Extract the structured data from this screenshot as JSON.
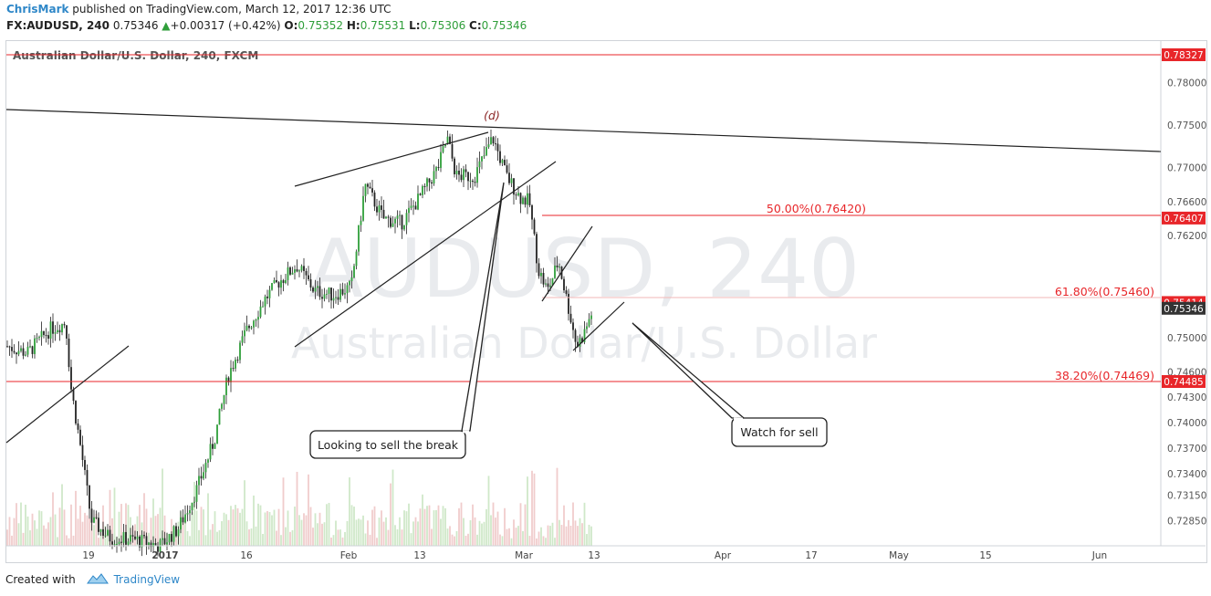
{
  "header": {
    "author": "ChrisMark",
    "published_text": "published on TradingView.com, March 12, 2017 12:36 UTC",
    "symbol": "FX:AUDUSD, 240",
    "last": "0.75346",
    "change": "+0.00317 (+0.42%)",
    "o_label": "O:",
    "o_val": "0.75352",
    "h_label": "H:",
    "h_val": "0.75531",
    "l_label": "L:",
    "l_val": "0.75306",
    "c_label": "C:",
    "c_val": "0.75346"
  },
  "footer": {
    "created_with": "Created with",
    "brand": "TradingView"
  },
  "colors": {
    "bull": "#2f9e3a",
    "bear": "#222222",
    "level": "#e8262a",
    "link": "#2e87c8"
  },
  "chart_data": {
    "type": "candlestick",
    "title": "Australian Dollar/U.S. Dollar, 240, FXCM",
    "watermark_symbol": "AUDUSD, 240",
    "watermark_name": "Australian Dollar/U.S. Dollar",
    "y_ticks": [
      "0.78000",
      "0.77500",
      "0.77000",
      "0.76600",
      "0.76200",
      "0.75000",
      "0.74600",
      "0.74300",
      "0.74000",
      "0.73700",
      "0.73400",
      "0.73150",
      "0.72850"
    ],
    "y_tick_values": [
      0.78,
      0.775,
      0.77,
      0.766,
      0.762,
      0.75,
      0.746,
      0.743,
      0.74,
      0.737,
      0.734,
      0.7315,
      0.7285
    ],
    "x_ticks": [
      "19",
      "2017",
      "16",
      "Feb",
      "13",
      "Mar",
      "13",
      "Apr",
      "17",
      "May",
      "15",
      "Jun"
    ],
    "price_labels": [
      {
        "value": "0.78327",
        "price": 0.78327,
        "bg": "#e8262a"
      },
      {
        "value": "0.76407",
        "price": 0.76407,
        "bg": "#e8262a"
      },
      {
        "value": "0.75414",
        "price": 0.75414,
        "bg": "#e8262a"
      },
      {
        "value": "0.75346",
        "price": 0.75346,
        "bg": "#333333"
      },
      {
        "value": "0.74485",
        "price": 0.74485,
        "bg": "#e8262a"
      }
    ],
    "fib_levels": [
      {
        "label": "50.00%(0.76420)",
        "price": 0.7642
      },
      {
        "label": "61.80%(0.75460)",
        "price": 0.7546
      },
      {
        "label": "38.20%(0.74469)",
        "price": 0.74469
      }
    ],
    "red_lines": [
      0.78327,
      0.76407,
      0.74485
    ],
    "wave_label": "(d)",
    "callouts": [
      "Looking to sell the break",
      "Watch for sell"
    ]
  }
}
